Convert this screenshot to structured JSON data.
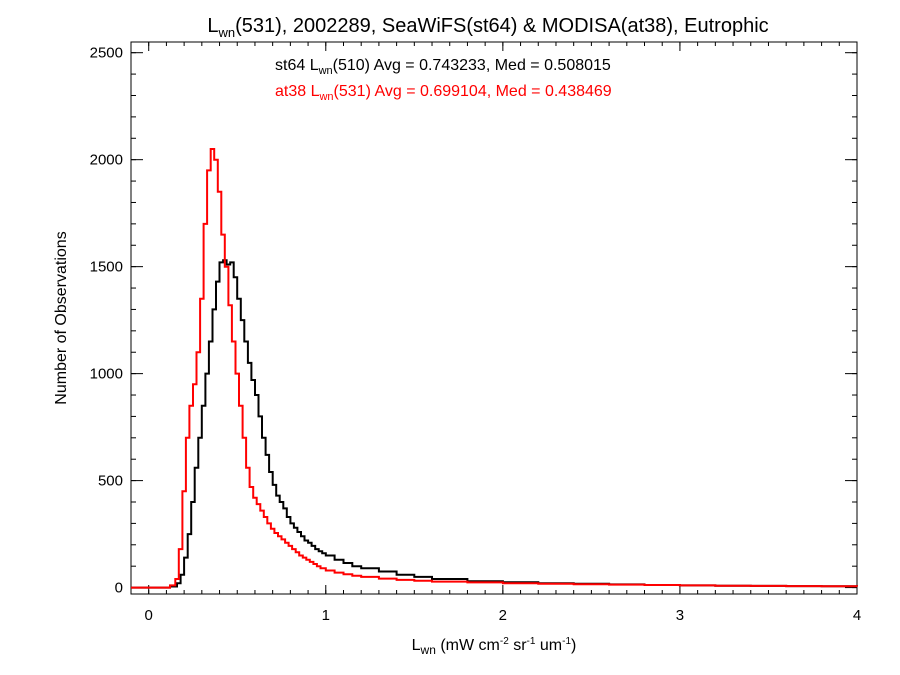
{
  "chart_data": {
    "type": "line",
    "title": {
      "main": "L",
      "sub": "wn",
      "rest": "(531), 2002289, SeaWiFS(st64) & MODISA(at38), Eutrophic"
    },
    "xlabel": {
      "main": "L",
      "sub": "wn",
      "unit": " (mW cm",
      "unit_sup1": "-2",
      "unit_mid": " sr",
      "unit_sup2": "-1",
      "unit_mid2": " um",
      "unit_sup3": "-1",
      "unit_end": ")"
    },
    "ylabel": "Number of Observations",
    "xlim": [
      -0.1,
      4.0
    ],
    "ylim": [
      -30,
      2550
    ],
    "xticks": [
      0,
      1,
      2,
      3,
      4
    ],
    "xtick_labels": [
      "0",
      "1",
      "2",
      "3",
      "4"
    ],
    "yticks": [
      0,
      500,
      1000,
      1500,
      2000,
      2500
    ],
    "ytick_labels": [
      "0",
      "500",
      "1000",
      "1500",
      "2000",
      "2500"
    ],
    "annotations": [
      {
        "pre": "st64 L",
        "sub": "wn",
        "post": "(510) Avg = 0.743233, Med = 0.508015",
        "color": "#000000"
      },
      {
        "pre": "at38 L",
        "sub": "wn",
        "post": "(531) Avg = 0.699104, Med = 0.438469",
        "color": "#ff0000"
      }
    ],
    "series": [
      {
        "color": "#000000",
        "x": [
          -0.1,
          0.0,
          0.08,
          0.12,
          0.16,
          0.18,
          0.2,
          0.22,
          0.24,
          0.26,
          0.28,
          0.3,
          0.32,
          0.34,
          0.36,
          0.38,
          0.4,
          0.42,
          0.44,
          0.46,
          0.48,
          0.5,
          0.52,
          0.54,
          0.56,
          0.58,
          0.6,
          0.62,
          0.64,
          0.66,
          0.68,
          0.7,
          0.72,
          0.74,
          0.76,
          0.78,
          0.8,
          0.82,
          0.84,
          0.86,
          0.88,
          0.9,
          0.92,
          0.94,
          0.96,
          0.98,
          1.0,
          1.05,
          1.1,
          1.15,
          1.2,
          1.3,
          1.4,
          1.5,
          1.6,
          1.8,
          2.0,
          2.2,
          2.4,
          2.6,
          2.8,
          3.0,
          3.2,
          3.4,
          3.6,
          3.8,
          4.0
        ],
        "y": [
          0,
          0,
          0,
          5,
          20,
          60,
          140,
          250,
          400,
          560,
          700,
          850,
          1000,
          1150,
          1300,
          1430,
          1520,
          1530,
          1510,
          1520,
          1450,
          1350,
          1250,
          1150,
          1050,
          970,
          900,
          800,
          700,
          620,
          540,
          480,
          430,
          400,
          370,
          330,
          300,
          280,
          260,
          240,
          220,
          210,
          195,
          180,
          170,
          160,
          150,
          130,
          115,
          100,
          90,
          75,
          60,
          50,
          40,
          30,
          25,
          20,
          18,
          15,
          12,
          10,
          9,
          8,
          7,
          6,
          5
        ]
      },
      {
        "color": "#ff0000",
        "x": [
          -0.1,
          0.0,
          0.08,
          0.12,
          0.15,
          0.17,
          0.19,
          0.21,
          0.23,
          0.25,
          0.27,
          0.29,
          0.31,
          0.33,
          0.35,
          0.37,
          0.39,
          0.41,
          0.43,
          0.45,
          0.47,
          0.49,
          0.51,
          0.53,
          0.55,
          0.57,
          0.59,
          0.61,
          0.63,
          0.65,
          0.67,
          0.69,
          0.71,
          0.73,
          0.75,
          0.77,
          0.79,
          0.81,
          0.83,
          0.85,
          0.87,
          0.89,
          0.91,
          0.93,
          0.95,
          0.97,
          1.0,
          1.05,
          1.1,
          1.15,
          1.2,
          1.3,
          1.4,
          1.5,
          1.6,
          1.8,
          2.0,
          2.2,
          2.4,
          2.6,
          2.8,
          3.0,
          3.2,
          3.4,
          3.6,
          3.8,
          4.0
        ],
        "y": [
          0,
          0,
          0,
          10,
          40,
          180,
          450,
          700,
          850,
          950,
          1100,
          1350,
          1700,
          1950,
          2050,
          2000,
          1850,
          1650,
          1500,
          1320,
          1150,
          1000,
          850,
          700,
          560,
          470,
          420,
          390,
          360,
          330,
          300,
          275,
          255,
          240,
          225,
          210,
          195,
          180,
          165,
          150,
          140,
          130,
          120,
          110,
          100,
          90,
          80,
          70,
          62,
          55,
          50,
          42,
          36,
          32,
          28,
          24,
          20,
          18,
          16,
          14,
          12,
          10,
          9,
          8,
          7,
          6,
          5
        ]
      }
    ]
  }
}
